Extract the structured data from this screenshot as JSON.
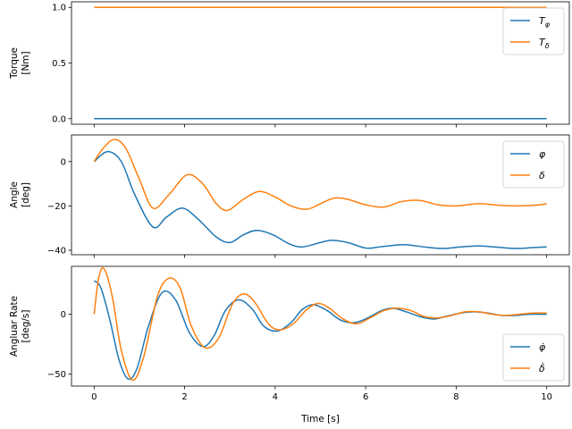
{
  "chart_data": [
    {
      "type": "line",
      "ylabel": [
        "Torque",
        "[Nm]"
      ],
      "xlabel": "",
      "xlim": [
        -0.5,
        10.5
      ],
      "ylim": [
        -0.05,
        1.05
      ],
      "xticks": [
        0,
        2,
        4,
        6,
        8,
        10
      ],
      "yticks": [
        0.0,
        0.5,
        1.0
      ],
      "ytick_labels": [
        "0.0",
        "0.5",
        "1.0"
      ],
      "show_xtick_labels": false,
      "legend_position": "top-right",
      "series": [
        {
          "label_main": "T",
          "label_sub": "φ",
          "color": "#1f77b4",
          "x": [
            0,
            10
          ],
          "y": [
            0,
            0
          ]
        },
        {
          "label_main": "T",
          "label_sub": "δ",
          "color": "#ff7f0e",
          "x": [
            0,
            10
          ],
          "y": [
            1,
            1
          ]
        }
      ]
    },
    {
      "type": "line",
      "ylabel": [
        "Angle",
        "[deg]"
      ],
      "xlabel": "",
      "xlim": [
        -0.5,
        10.5
      ],
      "ylim": [
        -42,
        12
      ],
      "xticks": [
        0,
        2,
        4,
        6,
        8,
        10
      ],
      "yticks": [
        -40,
        -20,
        0
      ],
      "ytick_labels": [
        "−40",
        "−20",
        "0"
      ],
      "show_xtick_labels": false,
      "legend_position": "top-right",
      "series": [
        {
          "label_main": "φ",
          "label_sub": "",
          "color": "#1f77b4",
          "x": [
            0,
            0.3,
            0.6,
            0.9,
            1.3,
            1.6,
            1.95,
            2.3,
            2.7,
            3.0,
            3.3,
            3.6,
            3.95,
            4.3,
            4.6,
            5.0,
            5.25,
            5.6,
            6.0,
            6.3,
            6.6,
            6.9,
            7.3,
            7.7,
            8.1,
            8.5,
            8.9,
            9.3,
            9.7,
            10.0
          ],
          "y": [
            0,
            4.5,
            0,
            -15,
            -29.5,
            -25,
            -21,
            -26,
            -34,
            -36.5,
            -33,
            -31,
            -33,
            -37,
            -38.5,
            -36.5,
            -35.5,
            -36.5,
            -39,
            -38.5,
            -37.8,
            -37.5,
            -38.5,
            -39.2,
            -38.5,
            -38,
            -38.6,
            -39.2,
            -38.8,
            -38.5
          ]
        },
        {
          "label_main": "δ",
          "label_sub": "",
          "color": "#ff7f0e",
          "x": [
            0,
            0.2,
            0.45,
            0.7,
            1.0,
            1.3,
            1.65,
            2.05,
            2.4,
            2.7,
            2.95,
            3.3,
            3.65,
            4.0,
            4.35,
            4.7,
            5.0,
            5.3,
            5.6,
            6.0,
            6.4,
            6.8,
            7.2,
            7.6,
            8.0,
            8.5,
            9.0,
            9.4,
            9.8,
            10.0
          ],
          "y": [
            0,
            6,
            10,
            6,
            -8,
            -21,
            -15,
            -6,
            -10,
            -19,
            -22,
            -17,
            -13.5,
            -16,
            -20,
            -21.5,
            -19,
            -16.5,
            -17,
            -19.5,
            -20.5,
            -18,
            -17.5,
            -19.5,
            -20,
            -19,
            -19.8,
            -20,
            -19.6,
            -19
          ]
        }
      ]
    },
    {
      "type": "line",
      "ylabel": [
        "Angluar Rate",
        "[deg/s]"
      ],
      "xlabel": "Time [s]",
      "xlim": [
        -0.5,
        10.5
      ],
      "ylim": [
        -60,
        40
      ],
      "xticks": [
        0,
        2,
        4,
        6,
        8,
        10
      ],
      "yticks": [
        -50,
        0
      ],
      "ytick_labels": [
        "−50",
        "0"
      ],
      "xtick_labels": [
        "0",
        "2",
        "4",
        "6",
        "8",
        "10"
      ],
      "show_xtick_labels": true,
      "legend_position": "bottom-right",
      "series": [
        {
          "label_main": "φ̇",
          "label_sub": "",
          "color": "#1f77b4",
          "x": [
            0,
            0.15,
            0.35,
            0.55,
            0.75,
            0.95,
            1.2,
            1.5,
            1.8,
            2.1,
            2.4,
            2.65,
            2.9,
            3.2,
            3.5,
            3.75,
            4.05,
            4.35,
            4.6,
            4.85,
            5.15,
            5.45,
            5.75,
            6.05,
            6.35,
            6.6,
            6.9,
            7.2,
            7.5,
            7.75,
            8.1,
            8.4,
            8.7,
            9.0,
            9.3,
            9.6,
            10.0
          ],
          "y": [
            28,
            22,
            -5,
            -38,
            -54,
            -45,
            -10,
            18,
            12,
            -15,
            -27,
            -18,
            3,
            12,
            4,
            -10,
            -14,
            -7,
            4,
            8,
            3,
            -5,
            -7,
            -3,
            3,
            5,
            2,
            -2,
            -4,
            -2,
            1,
            2,
            1,
            -1,
            -1,
            0,
            0
          ]
        },
        {
          "label_main": "δ̇",
          "label_sub": "",
          "color": "#ff7f0e",
          "x": [
            0,
            0.1,
            0.22,
            0.4,
            0.6,
            0.85,
            1.1,
            1.4,
            1.65,
            1.9,
            2.15,
            2.45,
            2.75,
            3.05,
            3.3,
            3.55,
            3.85,
            4.1,
            4.4,
            4.7,
            4.95,
            5.2,
            5.5,
            5.8,
            6.1,
            6.4,
            6.7,
            7.0,
            7.3,
            7.6,
            7.9,
            8.2,
            8.5,
            8.8,
            9.1,
            9.4,
            9.7,
            10.0
          ],
          "y": [
            0,
            30,
            38,
            15,
            -30,
            -55,
            -35,
            15,
            30,
            22,
            -10,
            -28,
            -20,
            8,
            17,
            10,
            -8,
            -13,
            -8,
            4,
            9,
            5,
            -4,
            -8,
            -3,
            3,
            5,
            3,
            -2,
            -3,
            -1,
            2,
            2,
            0,
            -1,
            0,
            1,
            1
          ]
        }
      ]
    }
  ]
}
